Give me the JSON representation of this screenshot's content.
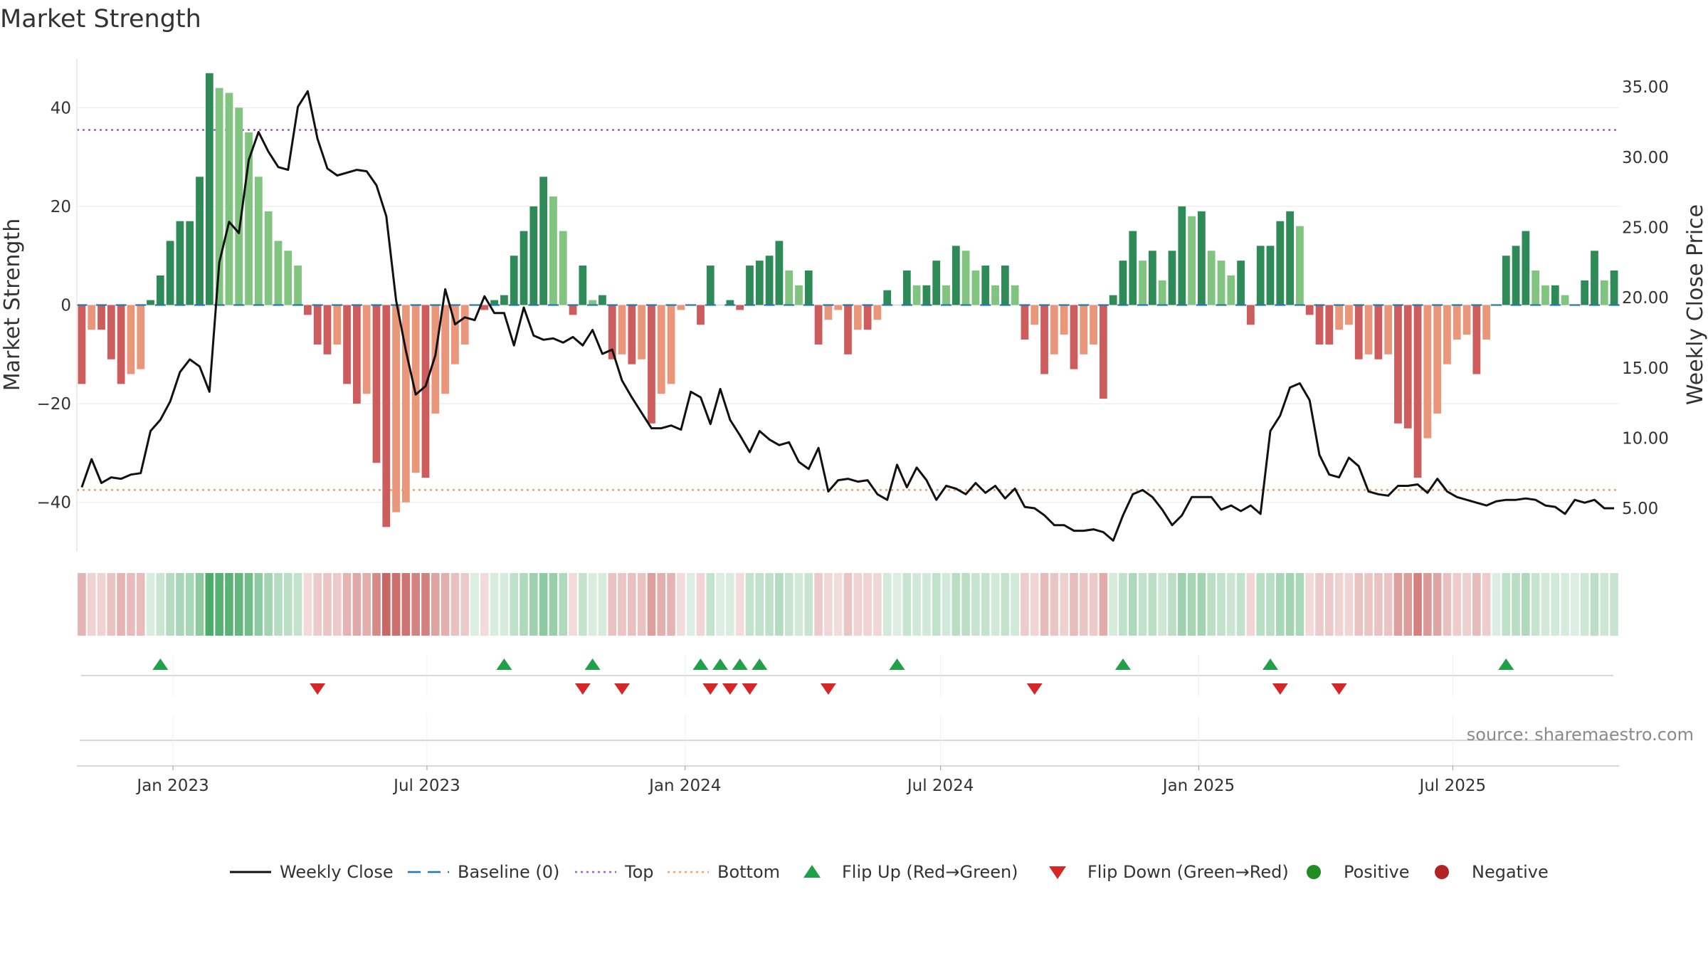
{
  "chart_data": {
    "type": "bar",
    "title": "Market Strength",
    "ylabel": "Market Strength",
    "y2label": "Weekly Close Price",
    "source": "source: sharemaestro.com",
    "ylim": [
      -50,
      50
    ],
    "y2lim": [
      1.91,
      37.04
    ],
    "y_ticks": [
      -40,
      -20,
      0,
      20,
      40
    ],
    "y2_ticks": [
      5.0,
      10.0,
      15.0,
      20.0,
      25.0,
      30.0,
      35.0
    ],
    "y_tick_labels": [
      "−40",
      "−20",
      "0",
      "20",
      "40"
    ],
    "y2_tick_labels": [
      "5.00",
      "10.00",
      "15.00",
      "20.00",
      "25.00",
      "30.00",
      "35.00"
    ],
    "top_line": 35.5,
    "bottom_line": -37.5,
    "baseline": 0,
    "start_date": "2022-10-28",
    "week_step_days": 7,
    "x_ticks": [
      {
        "date": "2023-01-01",
        "label": "Jan 2023"
      },
      {
        "date": "2023-07-01",
        "label": "Jul 2023"
      },
      {
        "date": "2024-01-01",
        "label": "Jan 2024"
      },
      {
        "date": "2024-07-01",
        "label": "Jul 2024"
      },
      {
        "date": "2025-01-01",
        "label": "Jan 2025"
      },
      {
        "date": "2025-07-01",
        "label": "Jul 2025"
      }
    ],
    "strength": [
      -16,
      -5,
      -5,
      -11,
      -16,
      -14,
      -13,
      1,
      6,
      13,
      17,
      17,
      26,
      47,
      44,
      43,
      40,
      35,
      26,
      19,
      13,
      11,
      8,
      -2,
      -8,
      -10,
      -8,
      -16,
      -20,
      -18,
      -32,
      -45,
      -42,
      -40,
      -34,
      -35,
      -22,
      -18,
      -12,
      -8,
      0,
      -1,
      1,
      2,
      10,
      15,
      20,
      26,
      22,
      15,
      -2,
      8,
      1,
      2,
      -11,
      -10,
      -12,
      -11,
      -24,
      -18,
      -16,
      -1,
      0,
      -4,
      8,
      0,
      1,
      -1,
      8,
      9,
      10,
      13,
      7,
      4,
      7,
      -8,
      -3,
      -1,
      -10,
      -5,
      -5,
      -3,
      3,
      0,
      7,
      4,
      4,
      9,
      4,
      12,
      11,
      7,
      8,
      4,
      8,
      4,
      -7,
      -4,
      -14,
      -10,
      -6,
      -13,
      -10,
      -8,
      -19,
      2,
      9,
      15,
      9,
      11,
      5,
      11,
      20,
      18,
      19,
      11,
      9,
      6,
      9,
      -4,
      12,
      12,
      17,
      19,
      16,
      -2,
      -8,
      -8,
      -5,
      -4,
      -11,
      -10,
      -11,
      -10,
      -24,
      -25,
      -35,
      -27,
      -22,
      -12,
      -7,
      -6,
      -14,
      -7,
      0,
      10,
      12,
      15,
      7,
      4,
      4,
      2,
      0,
      5,
      11,
      5,
      7
    ],
    "close": [
      6.5,
      8.5,
      6.8,
      7.2,
      7.1,
      7.4,
      7.5,
      10.5,
      11.3,
      12.6,
      14.7,
      15.6,
      15.1,
      13.3,
      22.5,
      25.4,
      24.6,
      29.8,
      31.8,
      30.4,
      29.3,
      29.1,
      33.6,
      34.7,
      31.3,
      29.2,
      28.7,
      28.9,
      29.1,
      29.0,
      28.0,
      25.8,
      19.8,
      16.2,
      13.1,
      13.7,
      15.9,
      20.6,
      18.1,
      18.6,
      18.4,
      20.1,
      18.9,
      18.9,
      16.6,
      19.3,
      17.3,
      17.0,
      17.1,
      16.8,
      17.2,
      16.6,
      17.7,
      16.0,
      16.3,
      14.1,
      12.9,
      11.8,
      10.7,
      10.7,
      10.9,
      10.6,
      13.3,
      12.9,
      11.0,
      13.5,
      11.3,
      10.2,
      9.0,
      10.5,
      9.9,
      9.5,
      9.7,
      8.3,
      7.8,
      9.3,
      6.2,
      7.0,
      7.1,
      6.9,
      7.0,
      6.0,
      5.6,
      8.1,
      6.5,
      7.9,
      7.0,
      5.6,
      6.6,
      6.4,
      6.0,
      6.8,
      6.1,
      6.6,
      5.7,
      6.4,
      5.1,
      5.0,
      4.5,
      3.8,
      3.8,
      3.4,
      3.4,
      3.5,
      3.3,
      2.7,
      4.5,
      6.0,
      6.3,
      5.8,
      4.9,
      3.8,
      4.5,
      5.8,
      5.8,
      5.8,
      4.9,
      5.2,
      4.8,
      5.2,
      4.6,
      10.5,
      11.6,
      13.6,
      13.9,
      12.7,
      8.8,
      7.4,
      7.2,
      8.6,
      8.0,
      6.2,
      6.0,
      5.9,
      6.6,
      6.6,
      6.7,
      6.1,
      7.1,
      6.2,
      5.8,
      5.6,
      5.4,
      5.2,
      5.5,
      5.6,
      5.6,
      5.7,
      5.6,
      5.2,
      5.1,
      4.6,
      5.6,
      5.4,
      5.6,
      5.0,
      5.0
    ],
    "flip_up_weeks": [
      8,
      43,
      52,
      63,
      65,
      67,
      69,
      83,
      106,
      121,
      145
    ],
    "flip_down_weeks": [
      24,
      51,
      55,
      64,
      66,
      68,
      76,
      97,
      122,
      128
    ],
    "legend": [
      {
        "label": "Weekly Close",
        "kind": "line-solid",
        "color": "#111111"
      },
      {
        "label": "Baseline (0)",
        "kind": "line-dash",
        "color": "#1f77b4"
      },
      {
        "label": "Top",
        "kind": "line-dot",
        "color": "#9a5fd1"
      },
      {
        "label": "Bottom",
        "kind": "line-dot",
        "color": "#f0a060"
      },
      {
        "label": "Flip Up (Red→Green)",
        "kind": "triangle-up",
        "color": "#21a04a"
      },
      {
        "label": "Flip Down (Green→Red)",
        "kind": "triangle-down",
        "color": "#d62728"
      },
      {
        "label": "Positive",
        "kind": "circle",
        "color": "#228b22"
      },
      {
        "label": "Negative",
        "kind": "circle",
        "color": "#b22222"
      }
    ],
    "colors": {
      "positive_rising": "#2e8b57",
      "positive_falling": "#80c480",
      "negative_falling": "#cd5c5c",
      "negative_rising": "#e9967a",
      "close_line": "#111111",
      "baseline": "#1f77b4",
      "top": "#9a5fd1",
      "bottom": "#f0a060",
      "flip_up": "#21a04a",
      "flip_down": "#d62728"
    }
  }
}
